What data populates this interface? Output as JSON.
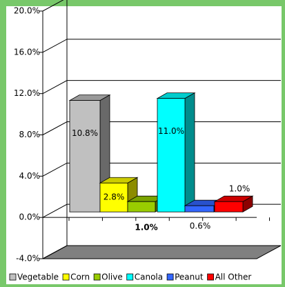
{
  "chart_data": {
    "type": "bar3d",
    "categories": [
      "Vegetable",
      "Corn",
      "Olive",
      "Canola",
      "Peanut",
      "All Other"
    ],
    "values": [
      10.8,
      2.8,
      1.0,
      11.0,
      0.6,
      1.0
    ],
    "value_labels": [
      "10.8%",
      "2.8%",
      "1.0%",
      "11.0%",
      "0.6%",
      "1.0%"
    ],
    "colors": [
      "#c0c0c0",
      "#ffff00",
      "#99cc00",
      "#00ffff",
      "#3366ff",
      "#ff0000"
    ],
    "ylim": [
      -4,
      20
    ],
    "yticks": [
      {
        "value": -4,
        "label": "-4.0%"
      },
      {
        "value": 0,
        "label": "0.0%"
      },
      {
        "value": 4,
        "label": "4.0%"
      },
      {
        "value": 8,
        "label": "8.0%"
      },
      {
        "value": 12,
        "label": "12.0%"
      },
      {
        "value": 16,
        "label": "16.0%"
      },
      {
        "value": 20,
        "label": "20.0%"
      }
    ],
    "grid": true,
    "legend": "bottom"
  }
}
